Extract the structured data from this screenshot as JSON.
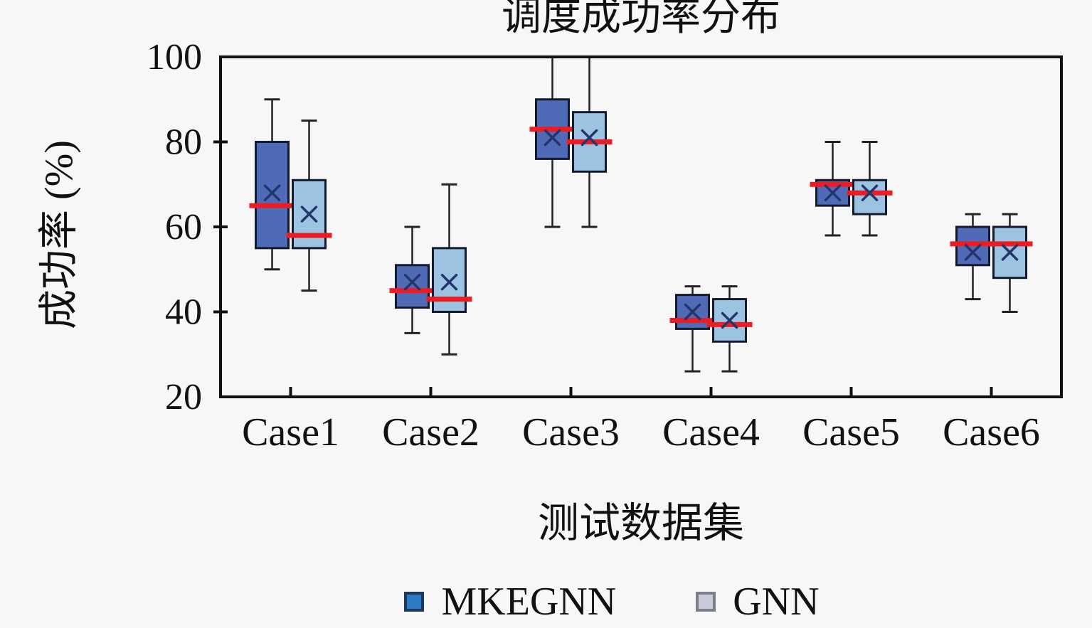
{
  "figure": {
    "background": "#f7f7f7"
  },
  "chart_data": {
    "type": "boxplot",
    "title": "调度成功率分布",
    "xlabel": "测试数据集",
    "ylabel": "成功率 (%)",
    "categories": [
      "Case1",
      "Case2",
      "Case3",
      "Case4",
      "Case5",
      "Case6"
    ],
    "ylim": [
      20,
      100
    ],
    "yticks": [
      20,
      40,
      60,
      80,
      100
    ],
    "grid": false,
    "legend_position": "bottom",
    "frame_color": "#111111",
    "median_color": "#ec1c24",
    "mean_marker": "x",
    "mean_marker_color": "#24356b",
    "box_border_color": "#131a2e",
    "whisker_color": "#222222",
    "series": [
      {
        "name": "MKEGNN",
        "fill": "#4f6bb8",
        "legend_fill": "#2e7bc4",
        "legend_border": "#1c3a5e",
        "boxes": [
          {
            "category": "Case1",
            "whisker_low": 50,
            "q1": 55,
            "median": 65,
            "mean": 68,
            "q3": 80,
            "whisker_high": 90
          },
          {
            "category": "Case2",
            "whisker_low": 35,
            "q1": 41,
            "median": 45,
            "mean": 47,
            "q3": 51,
            "whisker_high": 60
          },
          {
            "category": "Case3",
            "whisker_low": 60,
            "q1": 76,
            "median": 83,
            "mean": 81,
            "q3": 90,
            "whisker_high": 100
          },
          {
            "category": "Case4",
            "whisker_low": 26,
            "q1": 36,
            "median": 38,
            "mean": 40,
            "q3": 44,
            "whisker_high": 46
          },
          {
            "category": "Case5",
            "whisker_low": 58,
            "q1": 65,
            "median": 70,
            "mean": 68,
            "q3": 71,
            "whisker_high": 80
          },
          {
            "category": "Case6",
            "whisker_low": 43,
            "q1": 51,
            "median": 56,
            "mean": 54,
            "q3": 60,
            "whisker_high": 63
          }
        ]
      },
      {
        "name": "GNN",
        "fill": "#9dc3e3",
        "legend_fill": "#c7cbdc",
        "legend_border": "#7a7f8c",
        "boxes": [
          {
            "category": "Case1",
            "whisker_low": 45,
            "q1": 55,
            "median": 58,
            "mean": 63,
            "q3": 71,
            "whisker_high": 85
          },
          {
            "category": "Case2",
            "whisker_low": 30,
            "q1": 40,
            "median": 43,
            "mean": 47,
            "q3": 55,
            "whisker_high": 70
          },
          {
            "category": "Case3",
            "whisker_low": 60,
            "q1": 73,
            "median": 80,
            "mean": 81,
            "q3": 87,
            "whisker_high": 100
          },
          {
            "category": "Case4",
            "whisker_low": 26,
            "q1": 33,
            "median": 37,
            "mean": 38,
            "q3": 43,
            "whisker_high": 46
          },
          {
            "category": "Case5",
            "whisker_low": 58,
            "q1": 63,
            "median": 68,
            "mean": 68,
            "q3": 71,
            "whisker_high": 80
          },
          {
            "category": "Case6",
            "whisker_low": 40,
            "q1": 48,
            "median": 56,
            "mean": 54,
            "q3": 60,
            "whisker_high": 63
          }
        ]
      }
    ]
  }
}
